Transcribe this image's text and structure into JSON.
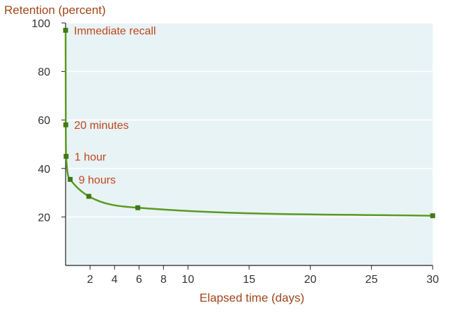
{
  "chart_data": {
    "type": "line",
    "title": "",
    "ylabel": "Retention (percent)",
    "xlabel": "Elapsed time (days)",
    "xlim": [
      0,
      30
    ],
    "ylim": [
      0,
      100
    ],
    "x_ticks": [
      2,
      4,
      6,
      8,
      10,
      15,
      20,
      25,
      30
    ],
    "y_ticks": [
      20,
      40,
      60,
      80,
      100
    ],
    "grid": "horizontal",
    "colors": {
      "plot_background": "#e8f3f6",
      "line": "#5a9a1e",
      "marker": "#3f7a12",
      "annotation": "#c0461c",
      "ylabel": "#a0461a",
      "xlabel": "#a0461a"
    },
    "series": [
      {
        "points": [
          {
            "x": 0,
            "y": 97
          },
          {
            "x": 0.014,
            "y": 58
          },
          {
            "x": 0.042,
            "y": 45
          },
          {
            "x": 0.375,
            "y": 35.5
          },
          {
            "x": 1.9,
            "y": 28.5
          },
          {
            "x": 5.9,
            "y": 23.8
          },
          {
            "x": 30,
            "y": 20.5
          }
        ]
      }
    ],
    "annotations": [
      {
        "text": "Immediate recall",
        "point_index": 0
      },
      {
        "text": "20 minutes",
        "point_index": 1
      },
      {
        "text": "1 hour",
        "point_index": 2
      },
      {
        "text": "9 hours",
        "point_index": 3
      }
    ]
  }
}
